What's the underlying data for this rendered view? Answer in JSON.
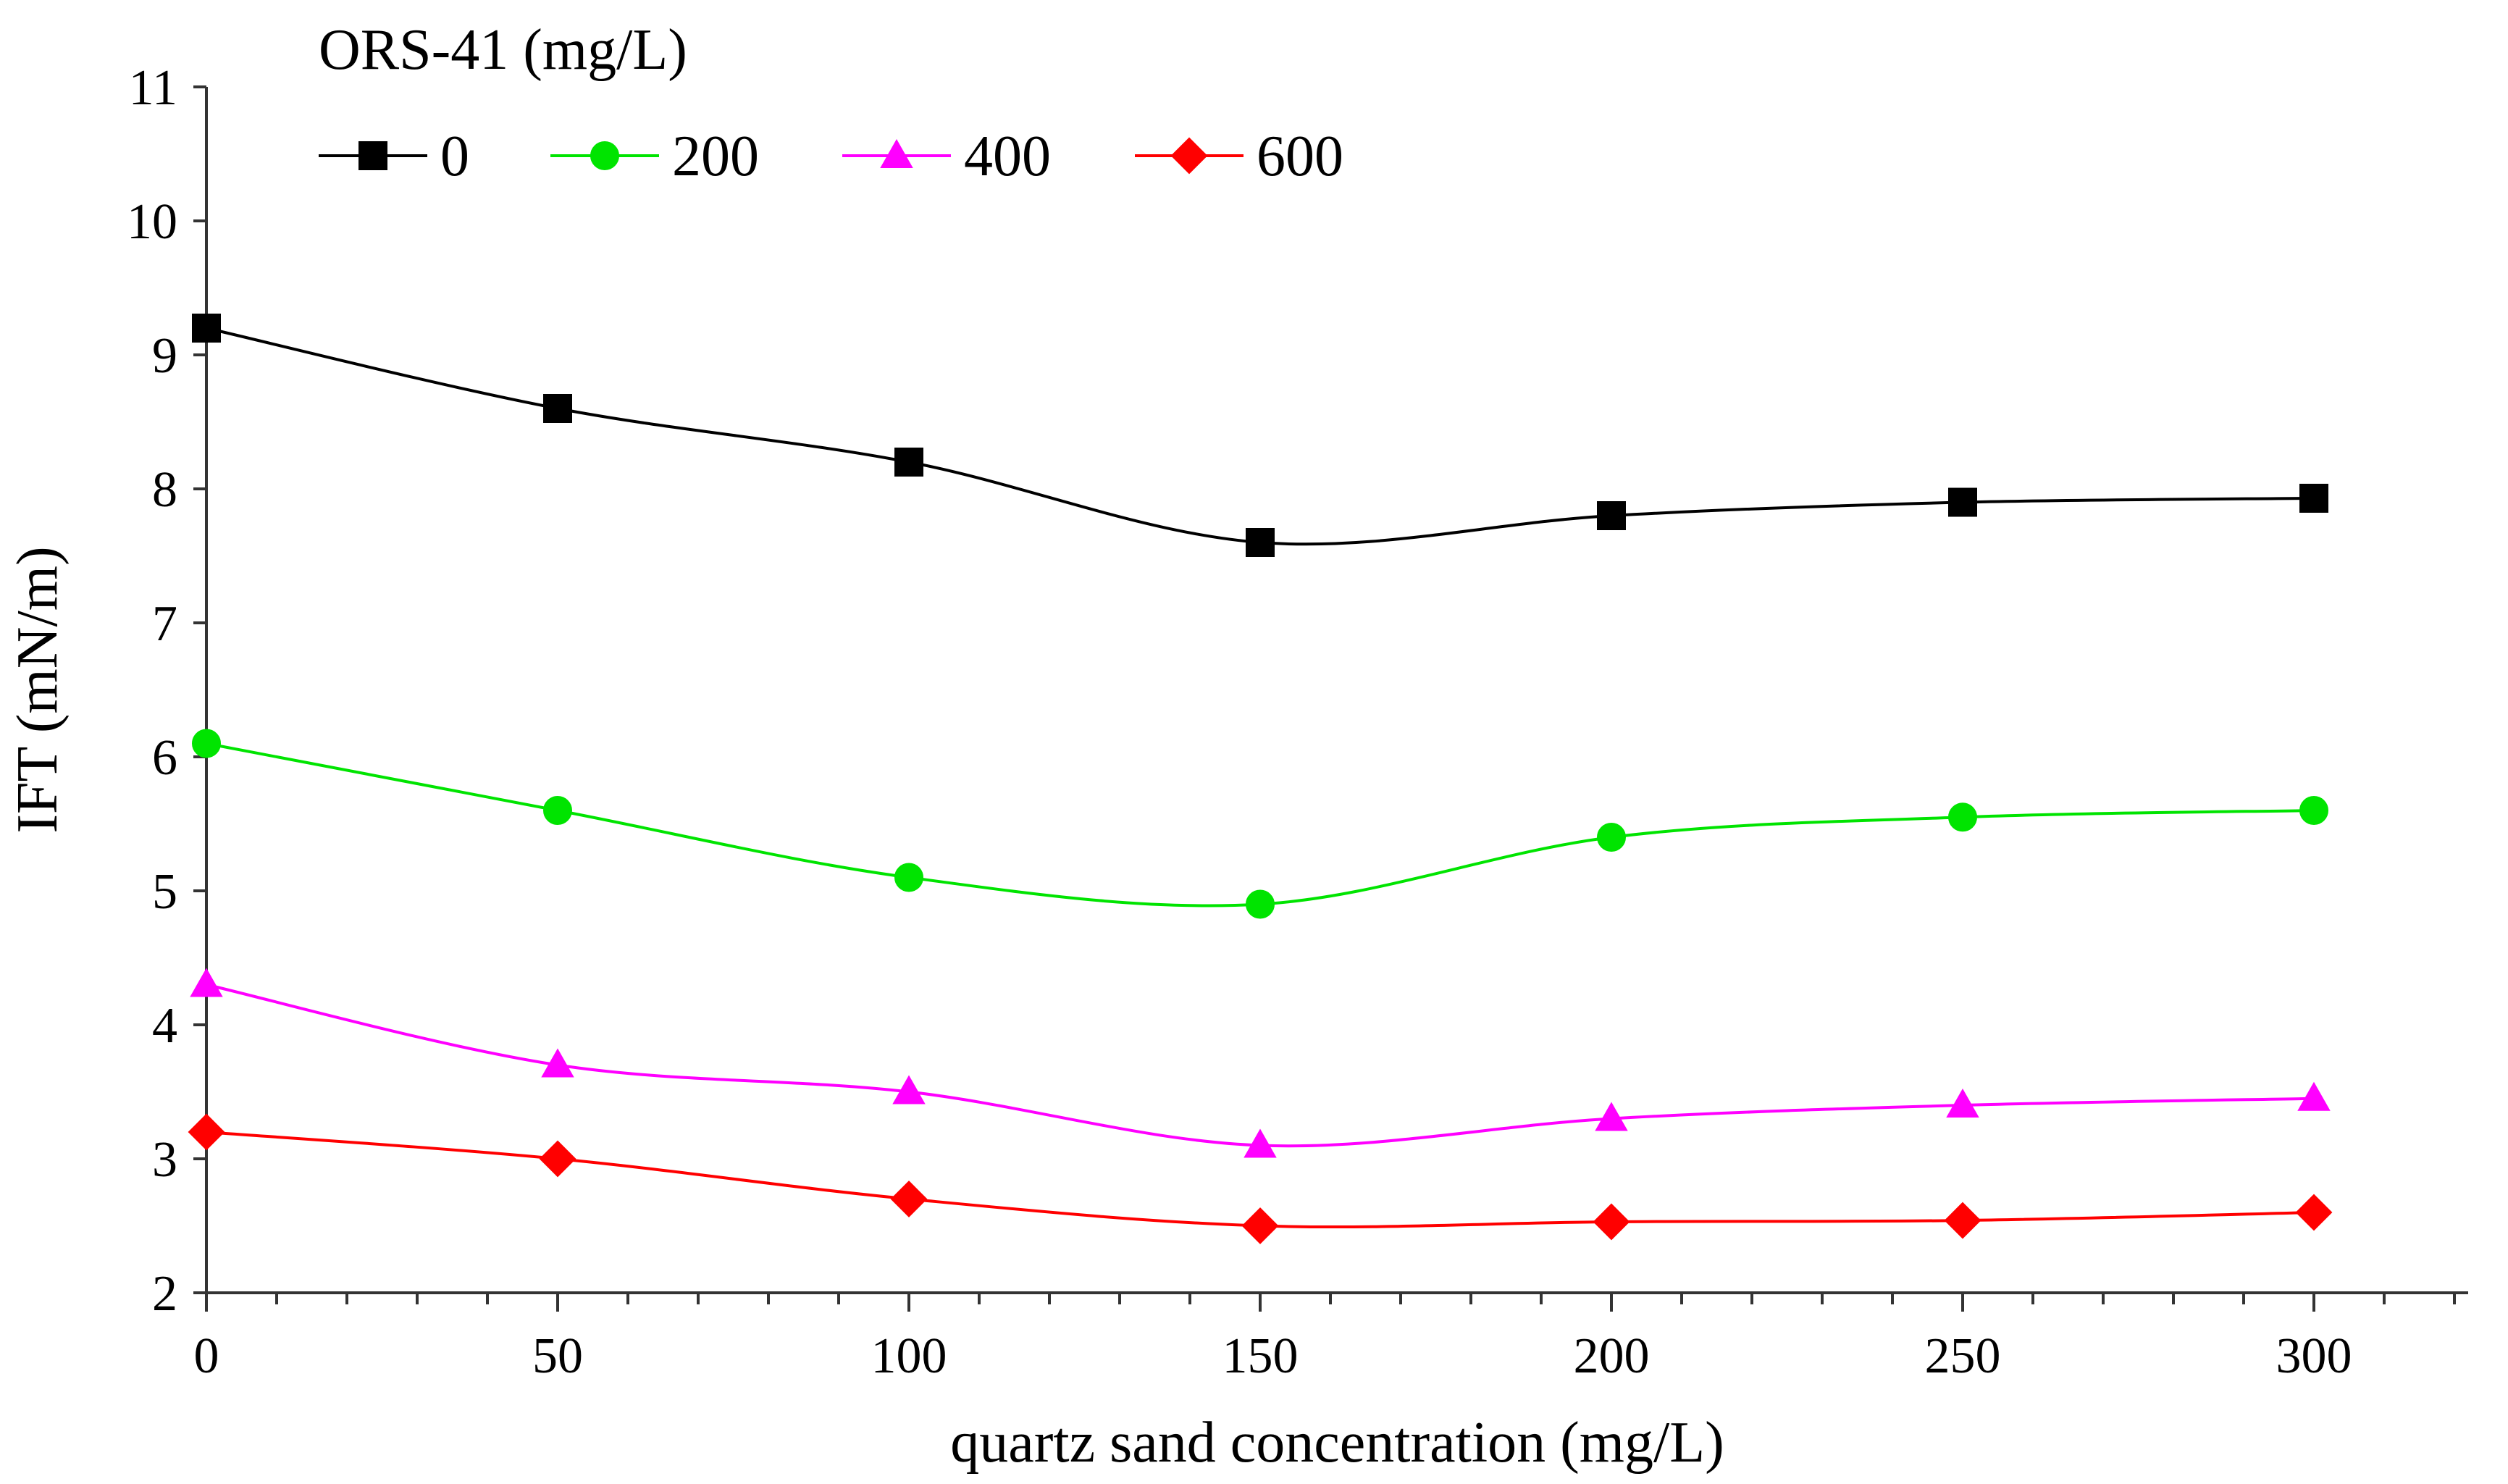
{
  "chart_data": {
    "type": "line",
    "title": "",
    "xlabel": "quartz sand concentration (mg/L)",
    "ylabel": "IFT (mN/m)",
    "xlim": [
      0,
      325
    ],
    "ylim": [
      2,
      11
    ],
    "x": [
      0,
      50,
      100,
      150,
      200,
      250,
      300
    ],
    "x_ticks": [
      0,
      50,
      100,
      150,
      200,
      250,
      300
    ],
    "y_ticks": [
      2,
      3,
      4,
      5,
      6,
      7,
      8,
      9,
      10,
      11
    ],
    "x_minor_step": 10,
    "grid": false,
    "legend": {
      "title": "ORS-41 (mg/L)",
      "placement": "top-left",
      "orientation": "horizontal"
    },
    "series": [
      {
        "name": "0",
        "color": "#000000",
        "marker": "square",
        "values": [
          9.2,
          8.6,
          8.2,
          7.6,
          7.8,
          7.9,
          7.93
        ]
      },
      {
        "name": "200",
        "color": "#00e400",
        "marker": "circle",
        "values": [
          6.1,
          5.6,
          5.1,
          4.9,
          5.4,
          5.55,
          5.6
        ]
      },
      {
        "name": "400",
        "color": "#ff00ff",
        "marker": "triangle",
        "values": [
          4.3,
          3.7,
          3.5,
          3.1,
          3.3,
          3.4,
          3.45
        ]
      },
      {
        "name": "600",
        "color": "#ff0000",
        "marker": "diamond",
        "values": [
          3.2,
          3.0,
          2.7,
          2.5,
          2.53,
          2.54,
          2.6
        ]
      }
    ]
  }
}
